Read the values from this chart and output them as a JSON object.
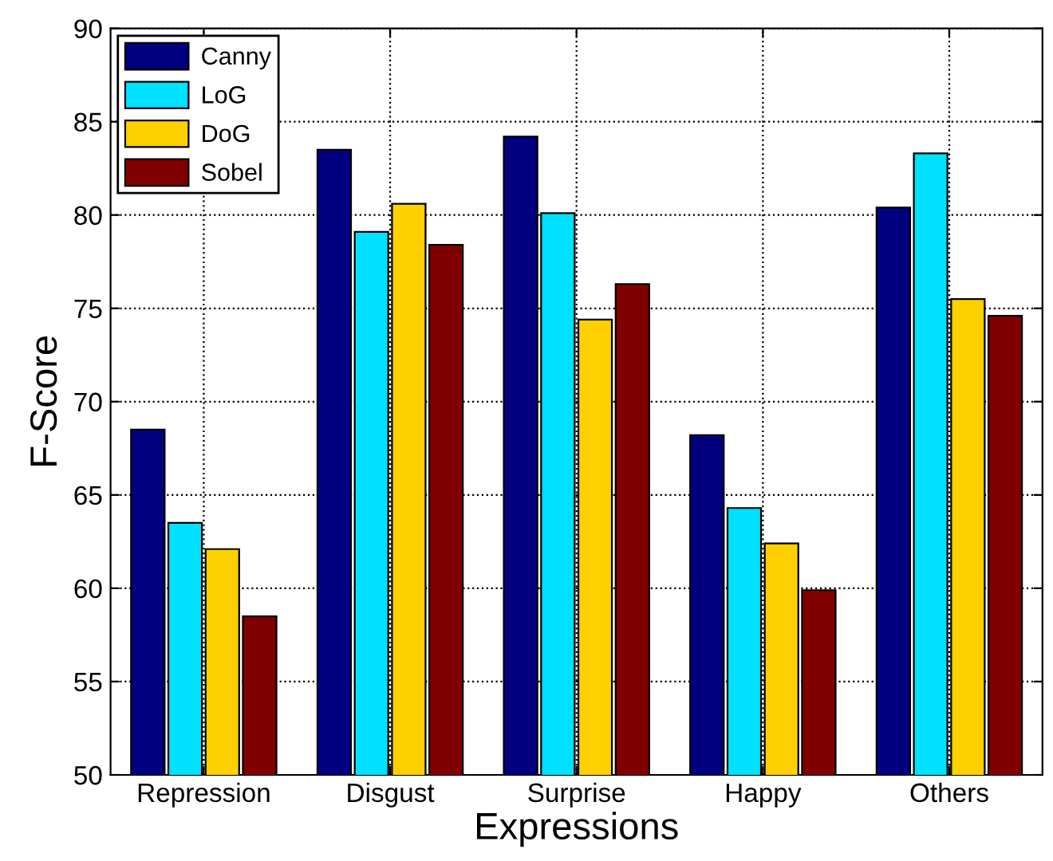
{
  "chart_data": {
    "type": "bar",
    "xlabel": "Expressions",
    "ylabel": "F-Score",
    "categories": [
      "Repression",
      "Disgust",
      "Surprise",
      "Happy",
      "Others"
    ],
    "series": [
      {
        "name": "Canny",
        "color": "#000080",
        "values": [
          68.5,
          83.5,
          84.2,
          68.2,
          80.4
        ]
      },
      {
        "name": "LoG",
        "color": "#00e0ff",
        "values": [
          63.5,
          79.1,
          80.1,
          64.3,
          83.3
        ]
      },
      {
        "name": "DoG",
        "color": "#ffd000",
        "values": [
          62.1,
          80.6,
          74.4,
          62.4,
          75.5
        ]
      },
      {
        "name": "Sobel",
        "color": "#800000",
        "values": [
          58.5,
          78.4,
          76.3,
          59.9,
          74.6
        ]
      }
    ],
    "ylim": [
      50,
      90
    ],
    "yticks": [
      50,
      55,
      60,
      65,
      70,
      75,
      80,
      85,
      90
    ],
    "grid": true,
    "legend": "top left"
  }
}
